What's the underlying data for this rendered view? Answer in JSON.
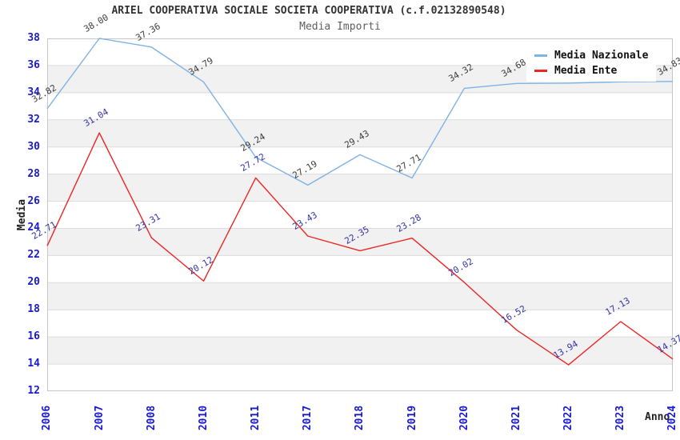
{
  "header": {
    "title": "ARIEL COOPERATIVA SOCIALE SOCIETA COOPERATIVA (c.f.02132890548)",
    "subtitle": "Media Importi"
  },
  "axes": {
    "y_title": "Media",
    "x_title": "Anno"
  },
  "legend": {
    "items": [
      {
        "label": "Media Nazionale",
        "color": "#7fb2e5"
      },
      {
        "label": "Media Ente",
        "color": "#ee2525"
      }
    ]
  },
  "colors": {
    "band_gray": "#f1f1f1",
    "gridline": "#dcdcdc",
    "plot_border": "#c6c6c6",
    "tick_label": "#1a1ace"
  },
  "chart_data": {
    "type": "line",
    "title": "ARIEL COOPERATIVA SOCIALE SOCIETA COOPERATIVA (c.f.02132890548)",
    "subtitle": "Media Importi",
    "xlabel": "Anno",
    "ylabel": "Media",
    "ylim": [
      12,
      38
    ],
    "ytick_step": 2,
    "grid": "horizontal, alternating shaded bands every 2 units",
    "legend_position": "top-right",
    "categories": [
      "2006",
      "2007",
      "2008",
      "2010",
      "2011",
      "2017",
      "2018",
      "2019",
      "2020",
      "2021",
      "2022",
      "2023",
      "2024"
    ],
    "series": [
      {
        "name": "Media Nazionale",
        "color": "#7fb2e5",
        "label_color": "#3c3c3c",
        "values": [
          32.82,
          38.0,
          37.36,
          34.79,
          29.24,
          27.19,
          29.43,
          27.71,
          34.32,
          34.68,
          34.7,
          34.8,
          34.83
        ],
        "labels": [
          "32.82",
          "38.00",
          "37.36",
          "34.79",
          "29.24",
          "27.19",
          "29.43",
          "27.71",
          "34.32",
          "34.68",
          null,
          null,
          "34.83"
        ],
        "note": "2022 and 2023 point labels hidden behind legend; values estimated from line position"
      },
      {
        "name": "Media Ente",
        "color": "#ee2525",
        "label_color": "#3434a6",
        "values": [
          22.71,
          31.04,
          23.31,
          20.12,
          27.72,
          23.43,
          22.35,
          23.28,
          20.02,
          16.52,
          13.94,
          17.13,
          14.37
        ],
        "labels": [
          "22.71",
          "31.04",
          "23.31",
          "20.12",
          "27.72",
          "23.43",
          "22.35",
          "23.28",
          "20.02",
          "16.52",
          "13.94",
          "17.13",
          "14.37"
        ]
      }
    ]
  }
}
